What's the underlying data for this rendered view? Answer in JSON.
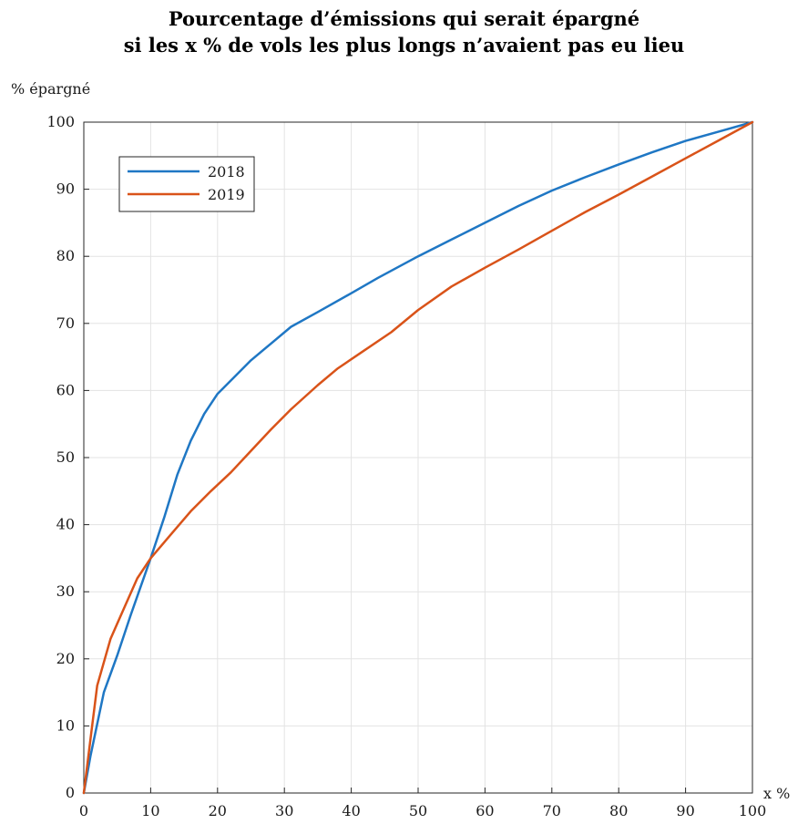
{
  "chart_data": {
    "type": "line",
    "title_line1": "Pourcentage d’émissions qui serait épargné",
    "title_line2": "si les x % de vols les plus longs n’avaient pas eu lieu",
    "ylabel": "% épargné",
    "xlabel": "x %",
    "xlim": [
      0,
      100
    ],
    "ylim": [
      0,
      100
    ],
    "xticks": [
      0,
      10,
      20,
      30,
      40,
      50,
      60,
      70,
      80,
      90,
      100
    ],
    "yticks": [
      0,
      10,
      20,
      30,
      40,
      50,
      60,
      70,
      80,
      90,
      100
    ],
    "grid": true,
    "legend_position": "top-left",
    "series": [
      {
        "name": "2018",
        "color": "#1f77c4",
        "x": [
          0,
          1,
          3,
          5,
          7,
          10,
          12,
          14,
          16,
          18,
          19,
          20,
          22,
          25,
          28,
          31,
          35,
          40,
          44,
          50,
          55,
          60,
          65,
          70,
          75,
          80,
          85,
          90,
          95,
          100
        ],
        "y": [
          0,
          5.5,
          15,
          20.5,
          26.5,
          35,
          41,
          47.5,
          52.5,
          56.5,
          58,
          59.5,
          61.5,
          64.5,
          67,
          69.5,
          71.7,
          74.5,
          76.8,
          80,
          82.5,
          85,
          87.5,
          89.8,
          91.8,
          93.7,
          95.5,
          97.2,
          98.6,
          100
        ]
      },
      {
        "name": "2019",
        "color": "#d95319",
        "x": [
          0,
          1,
          2,
          4,
          6,
          8,
          10,
          13,
          16,
          19,
          22,
          25,
          28,
          31,
          35,
          38,
          42,
          46,
          50,
          55,
          60,
          65,
          70,
          75,
          80,
          85,
          90,
          95,
          100
        ],
        "y": [
          0,
          8,
          16,
          23,
          27.5,
          32,
          35,
          38.5,
          42,
          45,
          47.8,
          51,
          54.2,
          57.2,
          60.8,
          63.3,
          66,
          68.7,
          72,
          75.5,
          78.3,
          81,
          83.8,
          86.6,
          89.2,
          91.9,
          94.6,
          97.3,
          100
        ]
      }
    ]
  }
}
